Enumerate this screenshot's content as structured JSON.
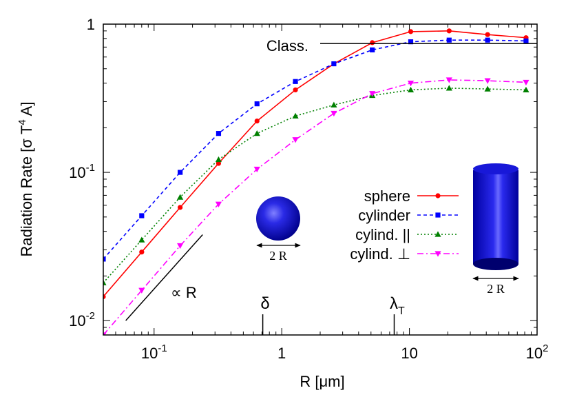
{
  "chart_data": {
    "type": "line",
    "x_scale": "log",
    "y_scale": "log",
    "xlim": [
      0.04,
      100
    ],
    "ylim": [
      0.008,
      1
    ],
    "xlabel": {
      "pre": "R [",
      "mu": "μ",
      "post": "m]"
    },
    "ylabel": {
      "pre": "Radiation Rate [",
      "sigma": "σ",
      "mid": " T",
      "sup": "4",
      "post": " A]"
    },
    "x_ticks": [
      {
        "value": 0.1,
        "base": "10",
        "exp": "-1"
      },
      {
        "value": 1,
        "text": "1"
      },
      {
        "value": 10,
        "text": "10"
      },
      {
        "value": 100,
        "base": "10",
        "exp": "2"
      }
    ],
    "y_ticks": [
      {
        "value": 0.01,
        "base": "10",
        "exp": "-2"
      },
      {
        "value": 0.1,
        "base": "10",
        "exp": "-1"
      },
      {
        "value": 1,
        "text": "1"
      }
    ],
    "series": [
      {
        "name": "sphere",
        "color": "#ff0000",
        "dash": "",
        "marker": "circle",
        "x": [
          0.04,
          0.08,
          0.16,
          0.32,
          0.64,
          1.28,
          2.56,
          5.12,
          10.24,
          20.48,
          40.96,
          81.92
        ],
        "y": [
          0.0145,
          0.029,
          0.058,
          0.115,
          0.222,
          0.36,
          0.54,
          0.75,
          0.89,
          0.9,
          0.85,
          0.81
        ]
      },
      {
        "name": "cylinder",
        "color": "#0000ff",
        "dash": "5,4",
        "marker": "square",
        "x": [
          0.04,
          0.08,
          0.16,
          0.32,
          0.64,
          1.28,
          2.56,
          5.12,
          10.24,
          20.48,
          40.96,
          81.92
        ],
        "y": [
          0.026,
          0.051,
          0.1,
          0.183,
          0.29,
          0.41,
          0.54,
          0.67,
          0.76,
          0.78,
          0.78,
          0.77
        ]
      },
      {
        "name": "cylind. ||",
        "color": "#008000",
        "dash": "2,3",
        "marker": "triangle-up",
        "x": [
          0.04,
          0.08,
          0.16,
          0.32,
          0.64,
          1.28,
          2.56,
          5.12,
          10.24,
          20.48,
          40.96,
          81.92
        ],
        "y": [
          0.018,
          0.035,
          0.068,
          0.122,
          0.183,
          0.24,
          0.285,
          0.33,
          0.36,
          0.37,
          0.365,
          0.36
        ]
      },
      {
        "name": "cylind. ⊥",
        "color": "#ff00ff",
        "dash": "9,4,2,4",
        "marker": "triangle-down",
        "x": [
          0.04,
          0.08,
          0.16,
          0.32,
          0.64,
          1.28,
          2.56,
          5.12,
          10.24,
          20.48,
          40.96,
          81.92
        ],
        "y": [
          0.008,
          0.016,
          0.032,
          0.061,
          0.105,
          0.166,
          0.25,
          0.34,
          0.4,
          0.42,
          0.415,
          0.405
        ]
      }
    ],
    "reference_lines": {
      "classical": {
        "label": "Class.",
        "y": 0.74,
        "x_from": 2.0,
        "x_to": 100
      },
      "slope": {
        "label": "∝ R",
        "x": [
          0.06,
          0.24
        ],
        "y": [
          0.01,
          0.038
        ]
      }
    },
    "markers": [
      {
        "label": "δ",
        "x": 0.71
      },
      {
        "label": "λ",
        "sub": "T",
        "x": 7.6
      }
    ],
    "insets": {
      "sphere_label": "2 R",
      "cylinder_label": "2 R"
    },
    "legend_position": "center-right",
    "grid": false
  }
}
